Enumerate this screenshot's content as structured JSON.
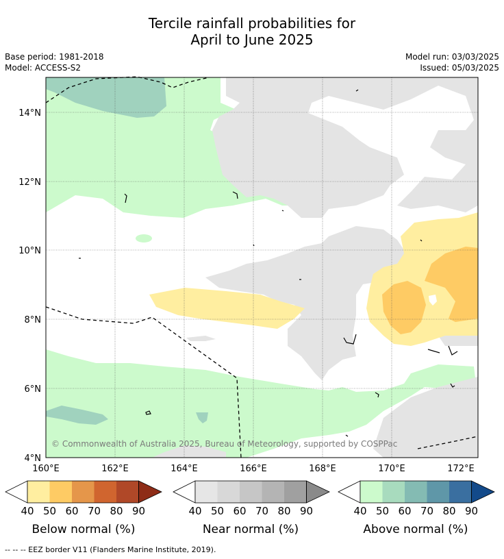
{
  "header": {
    "title_line1": "Tercile rainfall probabilities for",
    "title_line2": "April to June 2025",
    "base_period": "Base period: 1981-2018",
    "model": "Model: ACCESS-S2",
    "model_run": "Model run: 03/03/2025",
    "issued": "Issued: 05/03/2025"
  },
  "map": {
    "lat_labels": [
      "14°N",
      "12°N",
      "10°N",
      "8°N",
      "6°N",
      "4°N"
    ],
    "lon_labels": [
      "160°E",
      "162°E",
      "164°E",
      "166°E",
      "168°E",
      "170°E",
      "172°E"
    ],
    "copyright": "© Commonwealth of Australia 2025, Bureau of Meteorology, supported by COSPPac"
  },
  "colorbars": [
    {
      "title": "Below normal (%)",
      "ticks": [
        "40",
        "50",
        "60",
        "70",
        "80",
        "90"
      ],
      "colors": [
        "#ffeea0",
        "#fecb64",
        "#e5964a",
        "#d0652f",
        "#b04828",
        "#8e2c17"
      ]
    },
    {
      "title": "Near normal (%)",
      "ticks": [
        "40",
        "50",
        "60",
        "70",
        "80",
        "90"
      ],
      "colors": [
        "#e6e6e6",
        "#d8d8d8",
        "#c6c6c6",
        "#b4b4b4",
        "#a0a0a0",
        "#8a8a8a"
      ]
    },
    {
      "title": "Above normal (%)",
      "ticks": [
        "40",
        "50",
        "60",
        "70",
        "80",
        "90"
      ],
      "colors": [
        "#ccfacc",
        "#a8dbbe",
        "#84bbb3",
        "#5f97a8",
        "#3a6fa0",
        "#134a8a"
      ]
    }
  ],
  "legend_colors": {
    "above_40": "#ccfacc",
    "above_50": "#a0d2be",
    "near_40": "#e4e4e4",
    "below_40": "#ffeea0",
    "below_50": "#fecb64"
  },
  "footnote": "-- -- -- EEZ border V11 (Flanders Marine Institute, 2019)."
}
